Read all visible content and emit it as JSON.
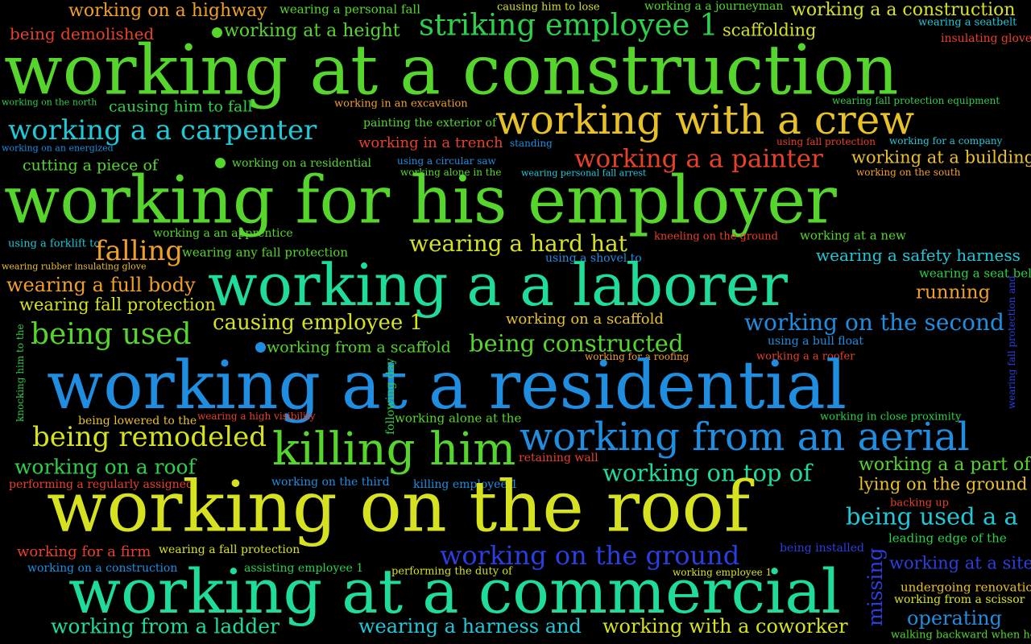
{
  "colors": {
    "background": "#000000",
    "yellow": "#d6e21f",
    "lime": "#56d62c",
    "green": "#2ecf4a",
    "teal": "#1fdc98",
    "cyan": "#20c8d8",
    "blue": "#1f8ee0",
    "navy": "#2a3fe0",
    "orange": "#f0a02a",
    "red": "#e8402a",
    "gold": "#e8c028"
  },
  "words": [
    "working on a highway",
    "wearing a personal fall",
    "causing him to lose",
    "working a a journeyman",
    "working a a construction",
    "being demolished",
    "working at a height",
    "striking employee 1",
    "scaffolding",
    "wearing a seatbelt",
    "insulating glove",
    "working at a construction",
    "working on the north",
    "causing him to fall",
    "working in an excavation",
    "wearing fall protection equipment",
    "working a a carpenter",
    "painting the exterior of",
    "working with a crew",
    "working on an energized",
    "working in a trench",
    "standing",
    "using fall protection",
    "working for a company",
    "working a a painter",
    "working at a building",
    "cutting a piece of",
    "working on a residential",
    "using a circular saw",
    "working alone in the",
    "wearing personal fall arrest",
    "working on the south",
    "working for his employer",
    "working a an apprentice",
    "kneeling on the ground",
    "working at a new",
    "using a forklift to",
    "falling",
    "wearing a hard hat",
    "wearing any fall protection",
    "using a shovel to",
    "wearing a safety harness",
    "wearing rubber insulating glove",
    "wearing a seat belt",
    "wearing a full body",
    "working a a laborer",
    "running",
    "wearing fall protection",
    "working on a scaffold",
    "causing employee 1",
    "working on the second",
    "being used",
    "being constructed",
    "working from a scaffold",
    "using a bull float",
    "working for a roofing",
    "working a a roofer",
    "working at a residential",
    "knocking him to the",
    "following day",
    "wearing fall protection and",
    "being lowered to the",
    "wearing a high visibility",
    "working alone at the",
    "working in close proximity",
    "being remodeled",
    "killing him",
    "working from an aerial",
    "working on a roof",
    "retaining wall",
    "working on top of",
    "working a a part of",
    "performing a regularly assigned",
    "working on the third",
    "killing employee 1",
    "lying on the ground",
    "working on the roof",
    "backing up",
    "being used a a",
    "leading edge of the",
    "working for a firm",
    "wearing a fall protection",
    "working on the ground",
    "being installed",
    "working on a construction",
    "assisting employee 1",
    "performing the duty of",
    "working employee 1",
    "working at a site",
    "missing",
    "undergoing renovation",
    "working at a commercial",
    "working from a scissor",
    "working from a ladder",
    "wearing a harness and",
    "working with a coworker",
    "operating",
    "walking backward when he"
  ]
}
